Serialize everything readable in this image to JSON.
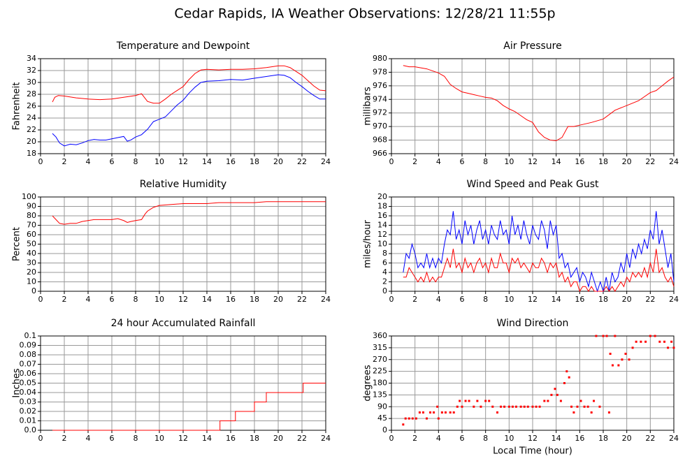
{
  "title": "Cedar Rapids, IA Weather Observations: 12/28/21 11:55p",
  "chart_data": [
    {
      "type": "line",
      "title": "Temperature and Dewpoint",
      "y_label": "Fahrenheit",
      "grid": true,
      "xlim": [
        0,
        24
      ],
      "xticks": [
        0,
        2,
        4,
        6,
        8,
        10,
        12,
        14,
        16,
        18,
        20,
        22,
        24
      ],
      "ylim": [
        18,
        34
      ],
      "yticks": [
        18,
        20,
        22,
        24,
        26,
        28,
        30,
        32,
        34
      ],
      "series": [
        {
          "color": "#ff0000",
          "x": [
            1,
            1.2,
            1.5,
            2,
            3,
            4,
            5,
            6,
            7,
            8,
            8.5,
            9,
            9.5,
            10,
            10.5,
            11,
            12,
            12.5,
            13,
            13.5,
            14,
            15,
            16,
            17,
            18,
            19,
            20,
            20.5,
            21,
            22,
            22.5,
            23,
            23.5,
            24
          ],
          "values": [
            26.7,
            27.5,
            27.8,
            27.7,
            27.4,
            27.2,
            27.1,
            27.2,
            27.5,
            27.8,
            28.1,
            26.8,
            26.5,
            26.5,
            27.2,
            28.0,
            29.3,
            30.5,
            31.5,
            32.1,
            32.2,
            32.1,
            32.2,
            32.2,
            32.3,
            32.5,
            32.8,
            32.8,
            32.5,
            31.2,
            30.3,
            29.4,
            28.7,
            28.6
          ]
        },
        {
          "color": "#0000ff",
          "x": [
            1,
            1.3,
            1.6,
            2,
            2.5,
            3,
            3.5,
            4,
            4.5,
            5,
            5.5,
            6,
            6.5,
            7,
            7.3,
            7.6,
            8,
            8.5,
            9,
            9.5,
            10,
            10.5,
            11,
            11.5,
            12,
            12.5,
            13,
            13.5,
            14,
            15,
            16,
            17,
            18,
            19,
            20,
            20.5,
            21,
            21.5,
            22,
            22.5,
            23,
            23.5,
            24
          ],
          "values": [
            21.4,
            20.8,
            19.8,
            19.3,
            19.6,
            19.5,
            19.8,
            20.2,
            20.4,
            20.3,
            20.3,
            20.5,
            20.7,
            20.9,
            20.1,
            20.3,
            20.8,
            21.2,
            22.1,
            23.4,
            23.8,
            24.2,
            25.2,
            26.2,
            27.0,
            28.2,
            29.2,
            30.0,
            30.2,
            30.3,
            30.5,
            30.4,
            30.7,
            31.0,
            31.3,
            31.2,
            30.8,
            30.0,
            29.3,
            28.5,
            27.8,
            27.2,
            27.2
          ]
        }
      ]
    },
    {
      "type": "line",
      "title": "Air Pressure",
      "y_label": "millibars",
      "grid": true,
      "xlim": [
        0,
        24
      ],
      "xticks": [
        0,
        2,
        4,
        6,
        8,
        10,
        12,
        14,
        16,
        18,
        20,
        22,
        24
      ],
      "ylim": [
        966,
        980
      ],
      "yticks": [
        966,
        968,
        970,
        972,
        974,
        976,
        978,
        980
      ],
      "series": [
        {
          "color": "#ff0000",
          "x": [
            1,
            1.5,
            2,
            3,
            4,
            4.5,
            5,
            5.5,
            6,
            6.5,
            7,
            7.5,
            8,
            8.5,
            9,
            9.5,
            10,
            10.5,
            11,
            11.5,
            12,
            12.5,
            13,
            13.5,
            14,
            14.5,
            15,
            15.5,
            16,
            17,
            18,
            19,
            20,
            21,
            22,
            22.5,
            23,
            23.5,
            24
          ],
          "values": [
            979.0,
            978.8,
            978.8,
            978.5,
            977.9,
            977.4,
            976.2,
            975.6,
            975.1,
            974.9,
            974.7,
            974.5,
            974.3,
            974.2,
            973.8,
            973.1,
            972.6,
            972.2,
            971.6,
            971.0,
            970.6,
            969.2,
            968.4,
            968.0,
            967.9,
            968.4,
            970.0,
            970.0,
            970.2,
            970.6,
            971.1,
            972.4,
            973.1,
            973.8,
            975.0,
            975.3,
            976.0,
            976.7,
            977.3
          ]
        }
      ]
    },
    {
      "type": "line",
      "title": "Relative Humidity",
      "y_label": "Percent",
      "grid": true,
      "xlim": [
        0,
        24
      ],
      "xticks": [
        0,
        2,
        4,
        6,
        8,
        10,
        12,
        14,
        16,
        18,
        20,
        22,
        24
      ],
      "ylim": [
        0,
        100
      ],
      "yticks": [
        0,
        10,
        20,
        30,
        40,
        50,
        60,
        70,
        80,
        90,
        100
      ],
      "series": [
        {
          "color": "#ff0000",
          "x": [
            1,
            1.3,
            1.6,
            2,
            2.5,
            3,
            3.5,
            4,
            4.5,
            5,
            6,
            6.5,
            7,
            7.3,
            7.6,
            8,
            8.5,
            8.8,
            9,
            9.5,
            10,
            11,
            12,
            13,
            14,
            15,
            16,
            18,
            19,
            20,
            21,
            22,
            23,
            24
          ],
          "values": [
            80,
            76,
            72,
            71,
            72,
            72,
            74,
            75,
            76,
            76,
            76,
            77,
            75,
            73,
            74,
            75,
            76,
            82,
            85,
            89,
            91,
            92,
            93,
            93,
            93,
            94,
            94,
            94,
            95,
            95,
            95,
            95,
            95,
            95
          ]
        }
      ]
    },
    {
      "type": "line",
      "title": "Wind Speed and Peak Gust",
      "y_label": "miles/hour",
      "grid": true,
      "xlim": [
        0,
        24
      ],
      "xticks": [
        0,
        2,
        4,
        6,
        8,
        10,
        12,
        14,
        16,
        18,
        20,
        22,
        24
      ],
      "ylim": [
        0,
        20
      ],
      "yticks": [
        0,
        2,
        4,
        6,
        8,
        10,
        12,
        14,
        16,
        18,
        20
      ],
      "series": [
        {
          "color": "#0000ff",
          "x": [
            1,
            1.25,
            1.5,
            1.75,
            2,
            2.25,
            2.5,
            2.75,
            3,
            3.25,
            3.5,
            3.75,
            4,
            4.25,
            4.5,
            4.75,
            5,
            5.25,
            5.5,
            5.75,
            6,
            6.25,
            6.5,
            6.75,
            7,
            7.25,
            7.5,
            7.75,
            8,
            8.25,
            8.5,
            8.75,
            9,
            9.25,
            9.5,
            9.75,
            10,
            10.25,
            10.5,
            10.75,
            11,
            11.25,
            11.5,
            11.75,
            12,
            12.25,
            12.5,
            12.75,
            13,
            13.25,
            13.5,
            13.75,
            14,
            14.25,
            14.5,
            14.75,
            15,
            15.25,
            15.5,
            15.75,
            16,
            16.25,
            16.5,
            16.75,
            17,
            17.25,
            17.5,
            17.75,
            18,
            18.25,
            18.5,
            18.75,
            19,
            19.25,
            19.5,
            19.75,
            20,
            20.25,
            20.5,
            20.75,
            21,
            21.25,
            21.5,
            21.75,
            22,
            22.25,
            22.5,
            22.75,
            23,
            23.25,
            23.5,
            23.75,
            24
          ],
          "values": [
            4,
            8,
            7,
            10,
            8,
            5,
            6,
            5,
            8,
            5,
            7,
            5,
            7,
            6,
            10,
            13,
            12,
            17,
            11,
            13,
            10,
            15,
            12,
            14,
            10,
            13,
            15,
            11,
            13,
            10,
            14,
            12,
            11,
            15,
            12,
            13,
            10,
            16,
            12,
            14,
            11,
            15,
            12,
            10,
            14,
            12,
            11,
            15,
            13,
            9,
            15,
            12,
            14,
            7,
            8,
            5,
            6,
            3,
            4,
            5,
            2,
            4,
            3,
            1,
            4,
            2,
            0,
            2,
            0,
            3,
            0,
            4,
            2,
            3,
            6,
            4,
            8,
            5,
            9,
            7,
            10,
            8,
            11,
            9,
            13,
            11,
            17,
            10,
            13,
            9,
            5,
            8,
            2
          ]
        },
        {
          "color": "#ff0000",
          "x": [
            1,
            1.25,
            1.5,
            1.75,
            2,
            2.25,
            2.5,
            2.75,
            3,
            3.25,
            3.5,
            3.75,
            4,
            4.25,
            4.5,
            4.75,
            5,
            5.25,
            5.5,
            5.75,
            6,
            6.25,
            6.5,
            6.75,
            7,
            7.25,
            7.5,
            7.75,
            8,
            8.25,
            8.5,
            8.75,
            9,
            9.25,
            9.5,
            9.75,
            10,
            10.25,
            10.5,
            10.75,
            11,
            11.25,
            11.5,
            11.75,
            12,
            12.25,
            12.5,
            12.75,
            13,
            13.25,
            13.5,
            13.75,
            14,
            14.25,
            14.5,
            14.75,
            15,
            15.25,
            15.5,
            15.75,
            16,
            16.25,
            16.5,
            16.75,
            17,
            17.25,
            17.5,
            17.75,
            18,
            18.25,
            18.5,
            18.75,
            19,
            19.25,
            19.5,
            19.75,
            20,
            20.25,
            20.5,
            20.75,
            21,
            21.25,
            21.5,
            21.75,
            22,
            22.25,
            22.5,
            22.75,
            23,
            23.25,
            23.5,
            23.75,
            24
          ],
          "values": [
            3,
            3,
            5,
            4,
            3,
            2,
            3,
            2,
            4,
            2,
            3,
            2,
            3,
            3,
            5,
            7,
            5,
            9,
            5,
            6,
            4,
            7,
            5,
            6,
            4,
            6,
            7,
            5,
            6,
            4,
            7,
            5,
            5,
            8,
            6,
            6,
            4,
            7,
            6,
            7,
            5,
            6,
            5,
            4,
            6,
            5,
            5,
            7,
            6,
            4,
            6,
            5,
            6,
            3,
            4,
            2,
            3,
            1,
            2,
            2,
            0,
            1,
            1,
            0,
            1,
            0,
            0,
            0,
            0,
            1,
            0,
            1,
            0,
            1,
            2,
            1,
            3,
            2,
            4,
            3,
            4,
            3,
            5,
            3,
            6,
            4,
            9,
            4,
            5,
            3,
            2,
            3,
            1
          ]
        }
      ]
    },
    {
      "type": "line",
      "title": "24 hour Accumulated Rainfall",
      "y_label": "Inches",
      "grid": true,
      "xlim": [
        0,
        24
      ],
      "xticks": [
        0,
        2,
        4,
        6,
        8,
        10,
        12,
        14,
        16,
        18,
        20,
        22,
        24
      ],
      "ylim": [
        0,
        0.1
      ],
      "yticks": [
        {
          "value": 0,
          "label": "0.0"
        },
        0.01,
        0.02,
        0.03,
        0.04,
        0.05,
        0.06,
        0.07,
        0.08,
        0.09,
        0.1
      ],
      "series": [
        {
          "color": "#ff0000",
          "x": [
            1,
            15.1,
            15.1,
            16.4,
            16.4,
            18,
            18,
            19,
            19,
            22.1,
            22.1,
            24
          ],
          "values": [
            0,
            0,
            0.01,
            0.01,
            0.02,
            0.02,
            0.03,
            0.03,
            0.04,
            0.04,
            0.05,
            0.05
          ]
        }
      ]
    },
    {
      "type": "scatter",
      "title": "Wind Direction",
      "y_label": "degrees",
      "x_label": "Local Time (hour)",
      "grid": true,
      "xlim": [
        0,
        24
      ],
      "xticks": [
        0,
        2,
        4,
        6,
        8,
        10,
        12,
        14,
        16,
        18,
        20,
        22,
        24
      ],
      "ylim": [
        0,
        360
      ],
      "yticks": [
        0,
        45,
        90,
        135,
        180,
        225,
        270,
        315,
        360
      ],
      "series": [
        {
          "color": "#ff0000",
          "x": [
            1,
            1.2,
            1.5,
            1.8,
            2.1,
            2.4,
            2.7,
            3,
            3.3,
            3.6,
            3.9,
            4,
            4.3,
            4.6,
            5,
            5.3,
            5.6,
            5.8,
            6,
            6.3,
            6.6,
            7,
            7.3,
            7.6,
            8,
            8.3,
            8.6,
            9,
            9.3,
            9.6,
            10,
            10.3,
            10.6,
            11,
            11.3,
            11.6,
            12,
            12.3,
            12.6,
            13,
            13.3,
            13.6,
            13.9,
            14.1,
            14.4,
            14.7,
            14.9,
            15.1,
            15.3,
            15.5,
            15.8,
            16.1,
            16.4,
            16.7,
            17,
            17.2,
            17.4,
            17.7,
            18,
            18.3,
            18.5,
            18.6,
            18.8,
            19,
            19.3,
            19.6,
            19.9,
            20.2,
            20.5,
            20.8,
            21.2,
            21.6,
            22,
            22.4,
            22.8,
            23.2,
            23.5,
            23.8,
            24
          ],
          "values": [
            22,
            45,
            45,
            45,
            45,
            68,
            68,
            45,
            68,
            68,
            90,
            45,
            68,
            68,
            68,
            68,
            90,
            112,
            90,
            112,
            112,
            90,
            112,
            90,
            112,
            112,
            90,
            68,
            90,
            90,
            90,
            90,
            90,
            90,
            90,
            90,
            90,
            90,
            90,
            112,
            112,
            135,
            158,
            135,
            112,
            180,
            225,
            202,
            90,
            68,
            90,
            112,
            90,
            90,
            68,
            112,
            360,
            90,
            360,
            360,
            68,
            292,
            248,
            360,
            248,
            270,
            292,
            270,
            315,
            338,
            338,
            338,
            360,
            360,
            338,
            338,
            315,
            338,
            315
          ]
        }
      ]
    }
  ]
}
